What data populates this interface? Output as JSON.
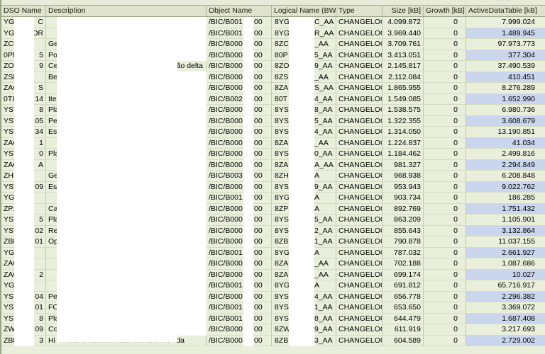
{
  "table": {
    "columns": [
      {
        "label": "DSO Name"
      },
      {
        "label": "Description"
      },
      {
        "label": "Object Name"
      },
      {
        "label": "Logical Name (BW)"
      },
      {
        "label": "Type"
      },
      {
        "label": "Size [kB]"
      },
      {
        "label": "Growth [kB]"
      },
      {
        "label": "ActiveDataTable [kB]"
      }
    ],
    "defaults": {
      "type_value": "CHANGELOG",
      "growth_value": "0",
      "obj_tail": "00"
    },
    "rows": [
      {
        "dso_l": "YG",
        "dso_r": "C",
        "desc_l": "",
        "desc_r": "",
        "obj": "/BIC/B001",
        "log_l": "8YG",
        "log_r": "C_AA",
        "size": "4.099.872",
        "active": "7.999.024",
        "blue": false
      },
      {
        "dso_l": "YG",
        "dso_r": "DR",
        "desc_l": "",
        "desc_r": "",
        "obj": "/BIC/B001",
        "log_l": "8YG",
        "log_r": "R_AA",
        "size": "3.969.440",
        "active": "1.489.945",
        "blue": true
      },
      {
        "dso_l": "ZCF",
        "dso_r": "",
        "desc_l": "Ge",
        "desc_r": "",
        "obj": "/BIC/B000",
        "log_l": "8ZC",
        "log_r": "_AA",
        "size": "3.709.761",
        "active": "97.973.773",
        "blue": false
      },
      {
        "dso_l": "0PM",
        "dso_r": "5",
        "desc_l": "Po",
        "desc_r": "",
        "obj": "/BIC/B000",
        "log_l": "80P",
        "log_r": "5_AA",
        "size": "3.413.051",
        "active": "377.304",
        "blue": true
      },
      {
        "dso_l": "ZO",
        "dso_r": "9",
        "desc_l": "Ce",
        "desc_r": "ão delta",
        "obj": "/BIC/B000",
        "log_l": "8ZO",
        "log_r": "9_AA",
        "size": "2.145.817",
        "active": "37.490.539",
        "blue": false
      },
      {
        "dso_l": "ZSD",
        "dso_r": "",
        "desc_l": "Be",
        "desc_r": "",
        "obj": "/BIC/B000",
        "log_l": "8ZS",
        "log_r": "_AA",
        "size": "2.112.084",
        "active": "410.451",
        "blue": true
      },
      {
        "dso_l": "ZAC",
        "dso_r": "S",
        "desc_l": "",
        "desc_r": "",
        "obj": "/BIC/B000",
        "log_l": "8ZA",
        "log_r": "S_AA",
        "size": "1.865.955",
        "active": "8.276.289",
        "blue": false
      },
      {
        "dso_l": "0TI",
        "dso_r": "14",
        "desc_l": "Ite",
        "desc_r": "",
        "obj": "/BIC/B002",
        "log_l": "80T",
        "log_r": "4_AA",
        "size": "1.549.085",
        "active": "1.652.990",
        "blue": true
      },
      {
        "dso_l": "YST",
        "dso_r": "8",
        "desc_l": "Pla",
        "desc_r": "",
        "obj": "/BIC/B000",
        "log_l": "8YS",
        "log_r": "8_AA",
        "size": "1.538.575",
        "active": "6.980.736",
        "blue": false
      },
      {
        "dso_l": "YST",
        "dso_r": "05",
        "desc_l": "Pe",
        "desc_r": "",
        "obj": "/BIC/B000",
        "log_l": "8YS",
        "log_r": "5_AA",
        "size": "1.322.355",
        "active": "3.608.679",
        "blue": true
      },
      {
        "dso_l": "YST",
        "dso_r": "34",
        "desc_l": "Es",
        "desc_r": "",
        "obj": "/BIC/B000",
        "log_l": "8YS",
        "log_r": "4_AA",
        "size": "1.314.050",
        "active": "13.190.851",
        "blue": false
      },
      {
        "dso_l": "ZAC",
        "dso_r": "1",
        "desc_l": "",
        "desc_r": "",
        "obj": "/BIC/B000",
        "log_l": "8ZA",
        "log_r": "_AA",
        "size": "1.224.837",
        "active": "41.034",
        "blue": true
      },
      {
        "dso_l": "YST",
        "dso_r": "0",
        "desc_l": "Pla",
        "desc_r": "",
        "obj": "/BIC/B000",
        "log_l": "8YS",
        "log_r": "0_AA",
        "size": "1.184.462",
        "active": "2.499.816",
        "blue": false
      },
      {
        "dso_l": "ZAC",
        "dso_r": "A",
        "desc_l": "",
        "desc_r": "",
        "obj": "/BIC/B000",
        "log_l": "8ZA",
        "log_r": "A_AA",
        "size": "981.327",
        "active": "2.294.849",
        "blue": true
      },
      {
        "dso_l": "ZHI",
        "dso_r": "",
        "desc_l": "Ge",
        "desc_r": "",
        "obj": "/BIC/B003",
        "log_l": "8ZH",
        "log_r": "A",
        "size": "968.938",
        "active": "6.208.848",
        "blue": false
      },
      {
        "dso_l": "YST",
        "dso_r": "09",
        "desc_l": "Es",
        "desc_r": "",
        "obj": "/BIC/B000",
        "log_l": "8YS",
        "log_r": "9_AA",
        "size": "953.943",
        "active": "9.022.762",
        "blue": true
      },
      {
        "dso_l": "YG",
        "dso_r": "",
        "desc_l": "",
        "desc_r": "",
        "obj": "/BIC/B001",
        "log_l": "8YG",
        "log_r": "A",
        "size": "903.734",
        "active": "186.285",
        "blue": false
      },
      {
        "dso_l": "ZP1",
        "dso_r": "",
        "desc_l": "Ca",
        "desc_r": "",
        "obj": "/BIC/B000",
        "log_l": "8ZP",
        "log_r": "A",
        "size": "892.769",
        "active": "1.751.432",
        "blue": true
      },
      {
        "dso_l": "YST",
        "dso_r": "5",
        "desc_l": "Pla",
        "desc_r": "",
        "obj": "/BIC/B000",
        "log_l": "8YS",
        "log_r": "5_AA",
        "size": "863.209",
        "active": "1.105.901",
        "blue": false
      },
      {
        "dso_l": "YST",
        "dso_r": "02",
        "desc_l": "Re",
        "desc_r": "",
        "obj": "/BIC/B000",
        "log_l": "8YS",
        "log_r": "2_AA",
        "size": "855.643",
        "active": "3.132.864",
        "blue": true
      },
      {
        "dso_l": "ZBN",
        "dso_r": "01",
        "desc_l": "Op",
        "desc_r": "",
        "obj": "/BIC/B000",
        "log_l": "8ZB",
        "log_r": "1_AA",
        "size": "790.878",
        "active": "11.037.155",
        "blue": false
      },
      {
        "dso_l": "YG",
        "dso_r": "",
        "desc_l": "",
        "desc_r": "",
        "obj": "/BIC/B001",
        "log_l": "8YG",
        "log_r": "A",
        "size": "787.032",
        "active": "2.661.927",
        "blue": true
      },
      {
        "dso_l": "ZAC",
        "dso_r": "",
        "desc_l": "",
        "desc_r": "",
        "obj": "/BIC/B000",
        "log_l": "8ZA",
        "log_r": "_AA",
        "size": "702.188",
        "active": "1.087.686",
        "blue": false
      },
      {
        "dso_l": "ZAC",
        "dso_r": "2",
        "desc_l": "",
        "desc_r": "",
        "obj": "/BIC/B000",
        "log_l": "8ZA",
        "log_r": "_AA",
        "size": "699.174",
        "active": "10.027",
        "blue": true
      },
      {
        "dso_l": "YG",
        "dso_r": "",
        "desc_l": "",
        "desc_r": "",
        "obj": "/BIC/B001",
        "log_l": "8YG",
        "log_r": "A",
        "size": "691.812",
        "active": "65.716.917",
        "blue": false
      },
      {
        "dso_l": "YST",
        "dso_r": "04",
        "desc_l": "Pe",
        "desc_r": "",
        "obj": "/BIC/B000",
        "log_l": "8YS",
        "log_r": "4_AA",
        "size": "656.778",
        "active": "2.296.382",
        "blue": true
      },
      {
        "dso_l": "YST",
        "dso_r": "01",
        "desc_l": "FC",
        "desc_r": "",
        "obj": "/BIC/B001",
        "log_l": "8YS",
        "log_r": "1_AA",
        "size": "653.650",
        "active": "3.369.072",
        "blue": false
      },
      {
        "dso_l": "YST",
        "dso_r": "8",
        "desc_l": "Pla",
        "desc_r": "",
        "obj": "/BIC/B001",
        "log_l": "8YS",
        "log_r": "8_AA",
        "size": "644.479",
        "active": "1.687.408",
        "blue": true
      },
      {
        "dso_l": "ZW",
        "dso_r": "09",
        "desc_l": "Co",
        "desc_r": "",
        "obj": "/BIC/B000",
        "log_l": "8ZW",
        "log_r": "9_AA",
        "size": "611.919",
        "active": "3.217.693",
        "blue": false
      },
      {
        "dso_l": "ZBN",
        "dso_r": "3",
        "desc_l": "Hi",
        "desc_r": "da",
        "desc_r_pad": 26,
        "obj": "/BIC/B000",
        "log_l": "8ZB",
        "log_r": "3_AA",
        "size": "604.589",
        "active": "2.729.002",
        "blue": true
      }
    ]
  },
  "artifacts": {
    "top_ticks": "'''''",
    "row1_logical_tops": "''''''",
    "row30_desc_bottom": "...... .. ......... .. ........ .. ...... .. . .."
  },
  "colors": {
    "row_bg": "#e9efda",
    "active_alt_bg": "#cad5ee",
    "header_bg": "#dfe3ce",
    "grid_vertical": "#c3c9ae",
    "grid_horizontal": "#d6dcc4",
    "window_border": "#9aa588",
    "redaction": "#ffffff",
    "text": "#000000"
  }
}
